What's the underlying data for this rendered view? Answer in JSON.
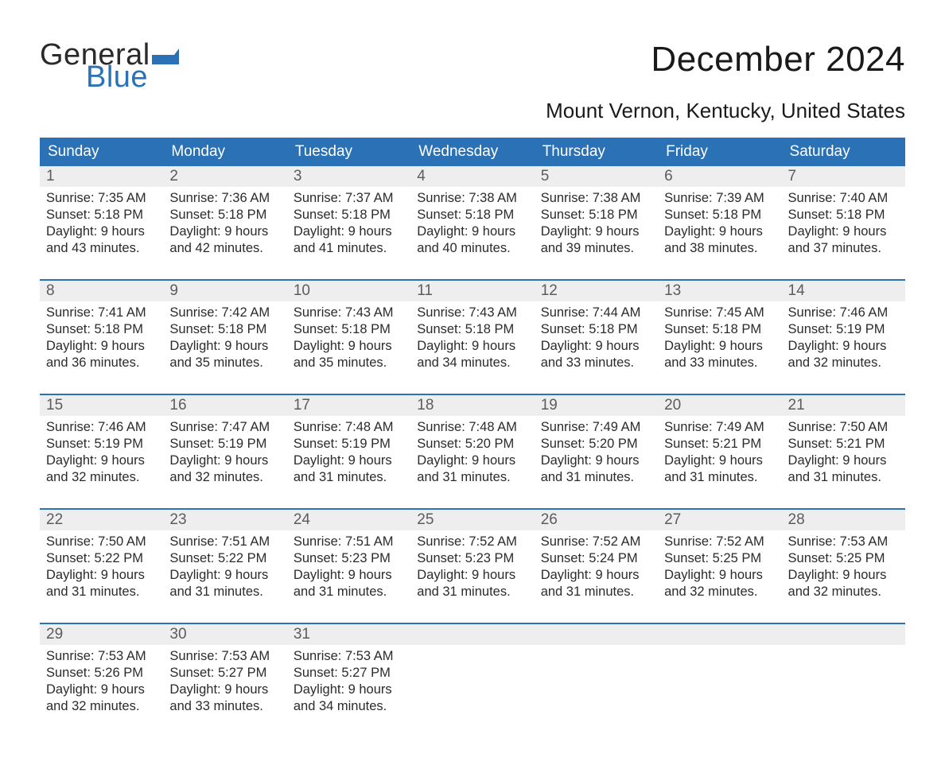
{
  "logo": {
    "text_general": "General",
    "text_blue": "Blue",
    "flag_color": "#2a72b5"
  },
  "title": "December 2024",
  "location": "Mount Vernon, Kentucky, United States",
  "colors": {
    "header_bg": "#2a72b5",
    "header_text": "#ffffff",
    "band_bg": "#eeeeee",
    "band_text": "#5c5c5c",
    "body_text": "#2b2b2b",
    "week_border": "#2a72b5"
  },
  "day_headers": [
    "Sunday",
    "Monday",
    "Tuesday",
    "Wednesday",
    "Thursday",
    "Friday",
    "Saturday"
  ],
  "weeks": [
    [
      {
        "n": "1",
        "sr": "7:35 AM",
        "ss": "5:18 PM",
        "dl": "9 hours and 43 minutes."
      },
      {
        "n": "2",
        "sr": "7:36 AM",
        "ss": "5:18 PM",
        "dl": "9 hours and 42 minutes."
      },
      {
        "n": "3",
        "sr": "7:37 AM",
        "ss": "5:18 PM",
        "dl": "9 hours and 41 minutes."
      },
      {
        "n": "4",
        "sr": "7:38 AM",
        "ss": "5:18 PM",
        "dl": "9 hours and 40 minutes."
      },
      {
        "n": "5",
        "sr": "7:38 AM",
        "ss": "5:18 PM",
        "dl": "9 hours and 39 minutes."
      },
      {
        "n": "6",
        "sr": "7:39 AM",
        "ss": "5:18 PM",
        "dl": "9 hours and 38 minutes."
      },
      {
        "n": "7",
        "sr": "7:40 AM",
        "ss": "5:18 PM",
        "dl": "9 hours and 37 minutes."
      }
    ],
    [
      {
        "n": "8",
        "sr": "7:41 AM",
        "ss": "5:18 PM",
        "dl": "9 hours and 36 minutes."
      },
      {
        "n": "9",
        "sr": "7:42 AM",
        "ss": "5:18 PM",
        "dl": "9 hours and 35 minutes."
      },
      {
        "n": "10",
        "sr": "7:43 AM",
        "ss": "5:18 PM",
        "dl": "9 hours and 35 minutes."
      },
      {
        "n": "11",
        "sr": "7:43 AM",
        "ss": "5:18 PM",
        "dl": "9 hours and 34 minutes."
      },
      {
        "n": "12",
        "sr": "7:44 AM",
        "ss": "5:18 PM",
        "dl": "9 hours and 33 minutes."
      },
      {
        "n": "13",
        "sr": "7:45 AM",
        "ss": "5:18 PM",
        "dl": "9 hours and 33 minutes."
      },
      {
        "n": "14",
        "sr": "7:46 AM",
        "ss": "5:19 PM",
        "dl": "9 hours and 32 minutes."
      }
    ],
    [
      {
        "n": "15",
        "sr": "7:46 AM",
        "ss": "5:19 PM",
        "dl": "9 hours and 32 minutes."
      },
      {
        "n": "16",
        "sr": "7:47 AM",
        "ss": "5:19 PM",
        "dl": "9 hours and 32 minutes."
      },
      {
        "n": "17",
        "sr": "7:48 AM",
        "ss": "5:19 PM",
        "dl": "9 hours and 31 minutes."
      },
      {
        "n": "18",
        "sr": "7:48 AM",
        "ss": "5:20 PM",
        "dl": "9 hours and 31 minutes."
      },
      {
        "n": "19",
        "sr": "7:49 AM",
        "ss": "5:20 PM",
        "dl": "9 hours and 31 minutes."
      },
      {
        "n": "20",
        "sr": "7:49 AM",
        "ss": "5:21 PM",
        "dl": "9 hours and 31 minutes."
      },
      {
        "n": "21",
        "sr": "7:50 AM",
        "ss": "5:21 PM",
        "dl": "9 hours and 31 minutes."
      }
    ],
    [
      {
        "n": "22",
        "sr": "7:50 AM",
        "ss": "5:22 PM",
        "dl": "9 hours and 31 minutes."
      },
      {
        "n": "23",
        "sr": "7:51 AM",
        "ss": "5:22 PM",
        "dl": "9 hours and 31 minutes."
      },
      {
        "n": "24",
        "sr": "7:51 AM",
        "ss": "5:23 PM",
        "dl": "9 hours and 31 minutes."
      },
      {
        "n": "25",
        "sr": "7:52 AM",
        "ss": "5:23 PM",
        "dl": "9 hours and 31 minutes."
      },
      {
        "n": "26",
        "sr": "7:52 AM",
        "ss": "5:24 PM",
        "dl": "9 hours and 31 minutes."
      },
      {
        "n": "27",
        "sr": "7:52 AM",
        "ss": "5:25 PM",
        "dl": "9 hours and 32 minutes."
      },
      {
        "n": "28",
        "sr": "7:53 AM",
        "ss": "5:25 PM",
        "dl": "9 hours and 32 minutes."
      }
    ],
    [
      {
        "n": "29",
        "sr": "7:53 AM",
        "ss": "5:26 PM",
        "dl": "9 hours and 32 minutes."
      },
      {
        "n": "30",
        "sr": "7:53 AM",
        "ss": "5:27 PM",
        "dl": "9 hours and 33 minutes."
      },
      {
        "n": "31",
        "sr": "7:53 AM",
        "ss": "5:27 PM",
        "dl": "9 hours and 34 minutes."
      },
      null,
      null,
      null,
      null
    ]
  ],
  "labels": {
    "sunrise": "Sunrise:",
    "sunset": "Sunset:",
    "daylight": "Daylight:"
  }
}
